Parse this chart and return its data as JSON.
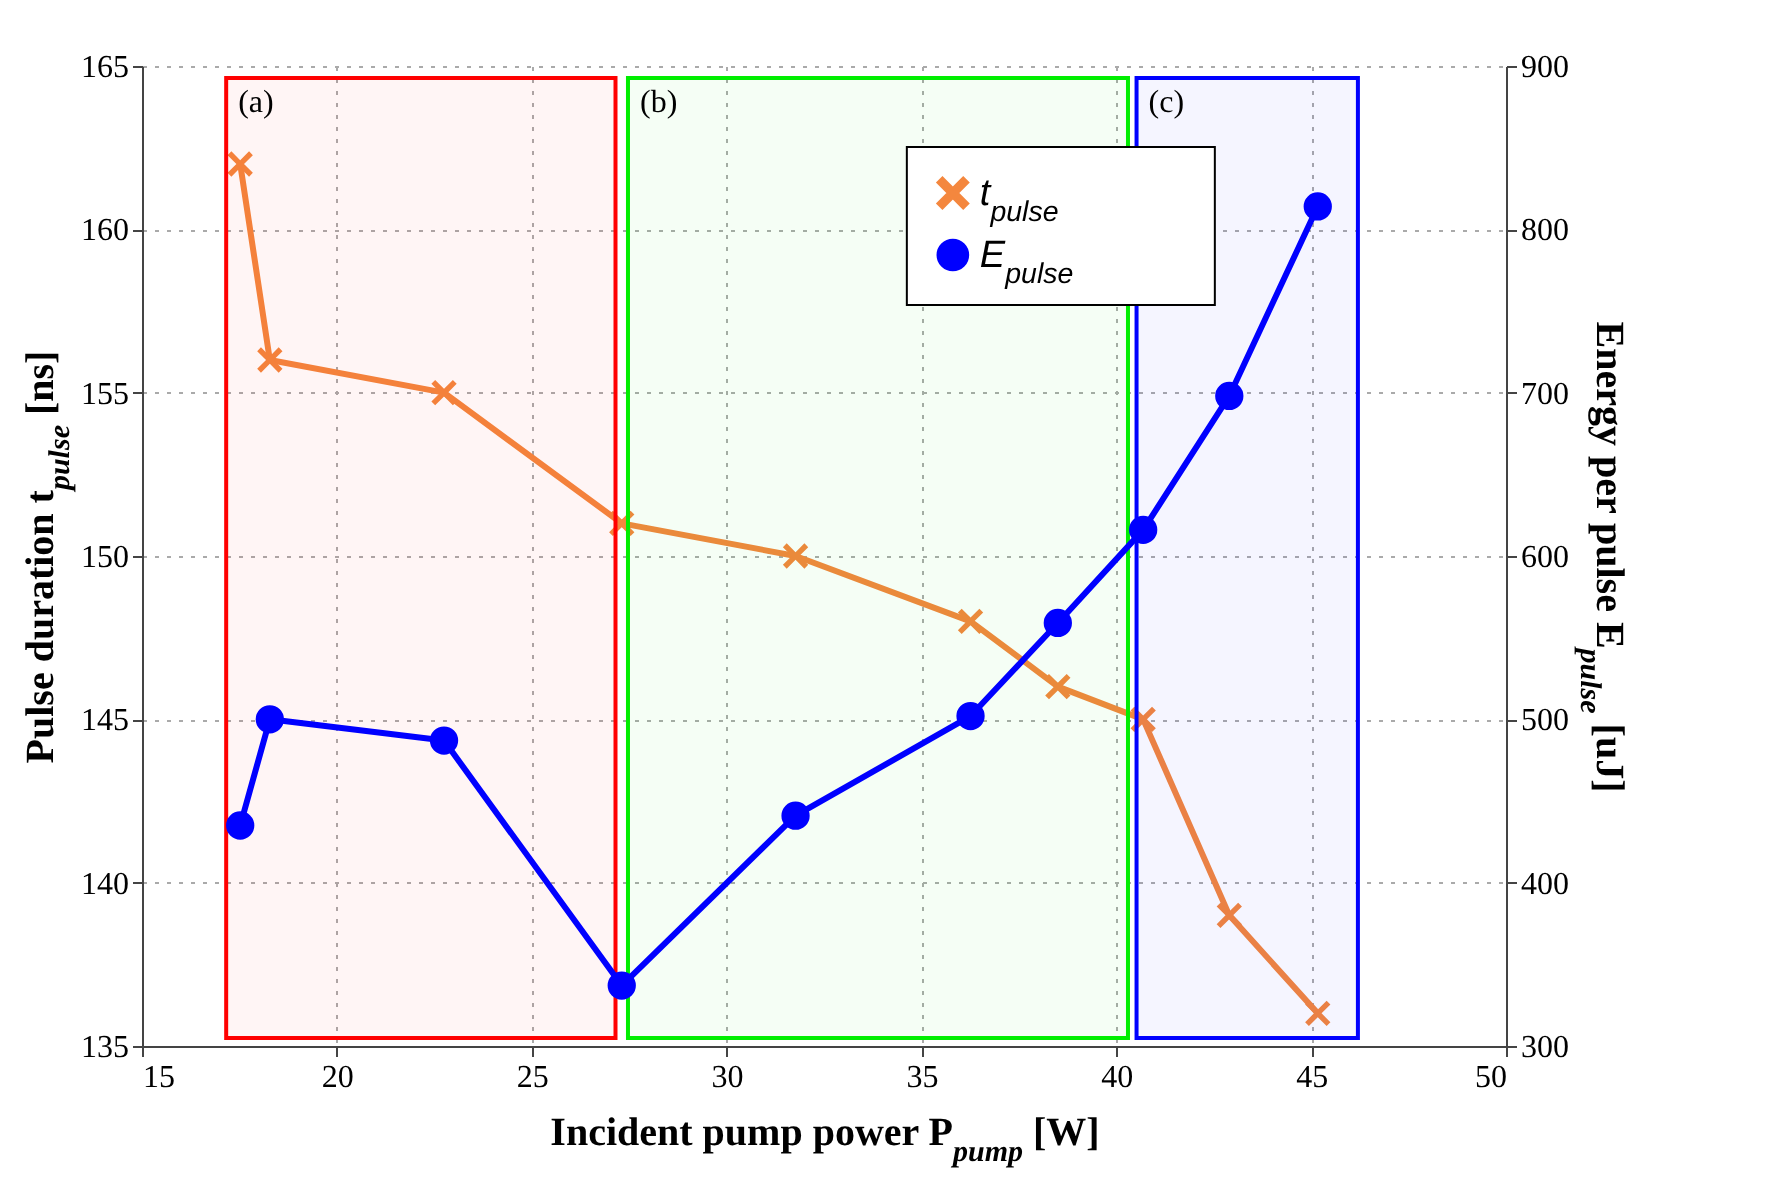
{
  "chart_data": {
    "type": "line",
    "xlabel": "Incident pump power P$_{pump}$ [W]",
    "ylabel": "Pulse duration t$_{pulse}$ [ns]",
    "y2label": "Energy per pulse E$_{pulse}$ [uJ]",
    "x": [
      17.52,
      18.28,
      22.75,
      27.31,
      31.77,
      36.26,
      38.5,
      40.69,
      42.9,
      45.17
    ],
    "series": [
      {
        "name": "t$_{pulse}$",
        "color": "#f4873e",
        "marker": "cross",
        "values": [
          162,
          156,
          155,
          151,
          150,
          148,
          146,
          145,
          139,
          136
        ]
      },
      {
        "name": "E$_{pulse}$",
        "color": "#0000ff",
        "marker": "circle",
        "axis": "y2",
        "values": [
          435,
          500,
          487,
          337,
          441,
          502,
          559,
          616,
          698,
          814
        ]
      }
    ],
    "xlim": [
      15,
      50
    ],
    "xticks": [
      15,
      20,
      25,
      30,
      35,
      40,
      45,
      50
    ],
    "ylim": [
      135,
      165
    ],
    "yticks": [
      135,
      140,
      145,
      150,
      155,
      160,
      165
    ],
    "y2lim": [
      300,
      900
    ],
    "y2ticks": [
      300,
      400,
      500,
      600,
      700,
      800,
      900
    ],
    "bands": [
      {
        "axis": "x",
        "from": 17.16,
        "to": 27.15,
        "label": "(a)",
        "color": "#ff0000"
      },
      {
        "axis": "x",
        "from": 27.47,
        "to": 40.3,
        "label": "(b)",
        "color": "#00ee00"
      },
      {
        "axis": "x",
        "from": 40.52,
        "to": 46.2,
        "label": "(c)",
        "color": "#0000ff"
      }
    ],
    "grid": true,
    "legend": "top"
  }
}
